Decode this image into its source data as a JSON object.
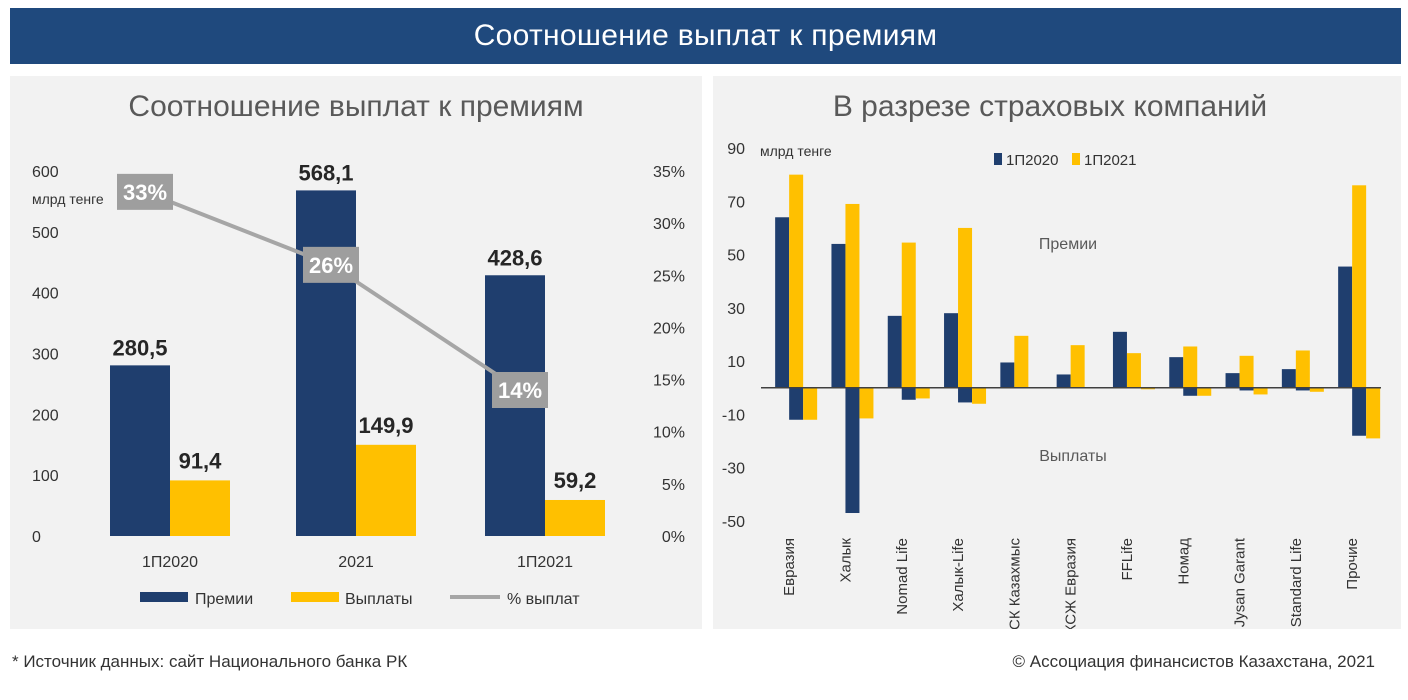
{
  "banner": {
    "title": "Соотношение выплат к премиям"
  },
  "colors": {
    "premii": "#1f3e6e",
    "vyplaty": "#ffc000",
    "line": "#a6a6a6",
    "label_box": "#9e9e9e",
    "banner": "#1f497d",
    "panel": "#f2f2f2"
  },
  "chart_data": [
    {
      "type": "bar",
      "title": "Соотношение выплат к премиям",
      "ylabel": "млрд тенге",
      "ylim": [
        0,
        600
      ],
      "yticks": [
        "0",
        "100",
        "200",
        "300",
        "400",
        "500",
        "600"
      ],
      "y2lim": [
        0,
        35
      ],
      "y2ticks": [
        "0%",
        "5%",
        "10%",
        "15%",
        "20%",
        "25%",
        "30%",
        "35%"
      ],
      "categories": [
        "1П2020",
        "2021",
        "1П2021"
      ],
      "series": [
        {
          "name": "Премии",
          "values": [
            280.5,
            568.1,
            428.6
          ],
          "labels": [
            "280,5",
            "568,1",
            "428,6"
          ]
        },
        {
          "name": "Выплаты",
          "values": [
            91.4,
            149.9,
            59.2
          ],
          "labels": [
            "91,4",
            "149,9",
            "59,2"
          ]
        },
        {
          "name": "% выплат",
          "type": "line",
          "axis": "right",
          "values": [
            33,
            26,
            14
          ],
          "labels": [
            "33%",
            "26%",
            "14%"
          ]
        }
      ],
      "legend": "bottom"
    },
    {
      "type": "bar",
      "title": "В разрезе страховых компаний",
      "ylabel": "млрд тенге",
      "ylim": [
        -50,
        90
      ],
      "yticks": [
        "90",
        "70",
        "50",
        "30",
        "10",
        "-10",
        "-30",
        "-50"
      ],
      "annotations": [
        "Премии",
        "Выплаты"
      ],
      "categories": [
        "Евразия",
        "Халык",
        "Nomad Life",
        "Халык-Life",
        "СК Казахмыс",
        "КСЖ Евразия",
        "FFLife",
        "Номад",
        "Jysan Garant",
        "Standard Life",
        "Прочие"
      ],
      "series": [
        {
          "name": "1П2020",
          "premii": [
            64,
            54,
            27,
            28,
            9.5,
            5,
            21,
            11.5,
            5.5,
            7,
            45.5
          ],
          "vyplaty": [
            -12,
            -47,
            -4.5,
            -5.5,
            0,
            0,
            0,
            -3,
            -1,
            -1,
            -18
          ]
        },
        {
          "name": "1П2021",
          "premii": [
            80,
            69,
            54.5,
            60,
            19.5,
            16,
            13,
            15.5,
            12,
            14,
            76
          ],
          "vyplaty": [
            -12,
            -11.5,
            -4,
            -6,
            0,
            0,
            -0.5,
            -3,
            -2.5,
            -1.5,
            -19
          ]
        }
      ],
      "legend": "top"
    }
  ],
  "footer": {
    "source": "* Источник данных: сайт Национального банка РК",
    "copyright": "© Ассоциация финансистов Казахстана, 2021"
  }
}
